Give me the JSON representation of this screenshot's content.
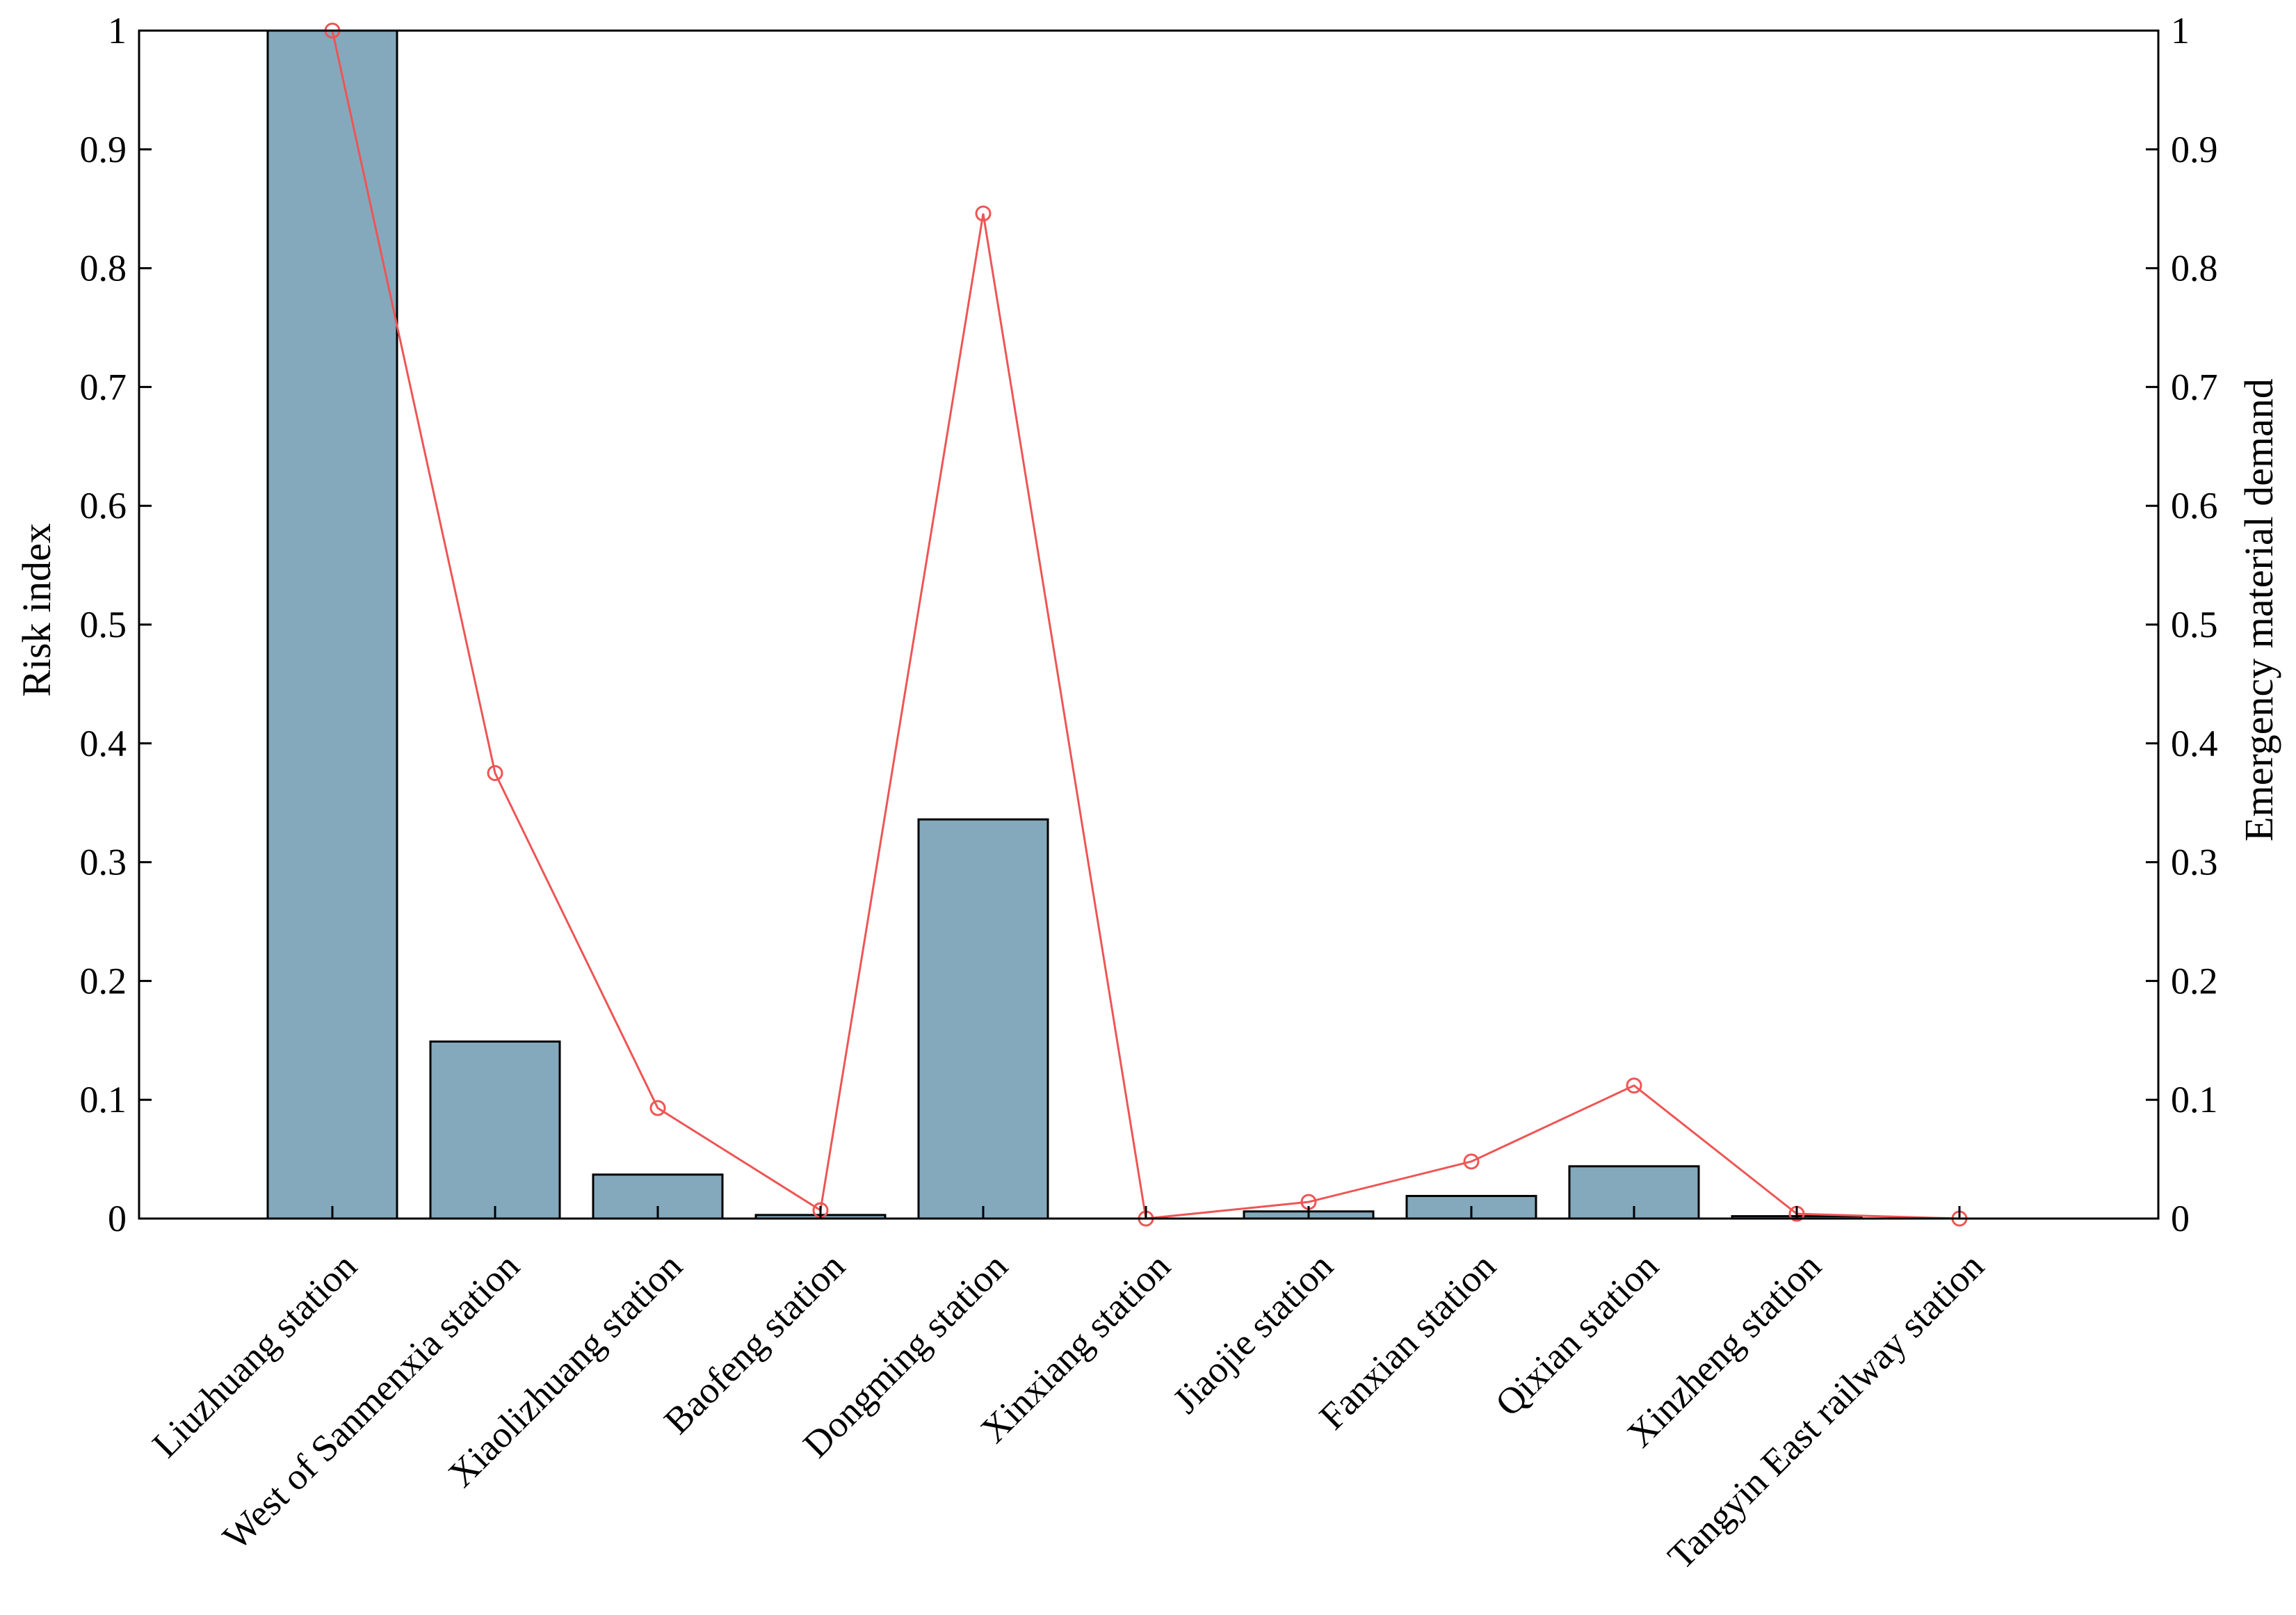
{
  "chart_data": {
    "type": "bar",
    "categories": [
      "Liuzhuang station",
      "West of Sanmenxia station",
      "Xiaolizhuang station",
      "Baofeng station",
      "Dongming station",
      "Xinxiang station",
      "Jiaojie station",
      "Fanxian station",
      "Qixian station",
      "Xinzheng station",
      "Tangyin East railway station"
    ],
    "series": [
      {
        "name": "Risk index",
        "type": "bar",
        "axis": "left",
        "values": [
          1.0,
          0.149,
          0.037,
          0.003,
          0.336,
          0.0,
          0.006,
          0.019,
          0.044,
          0.002,
          0.0
        ]
      },
      {
        "name": "Emergency material demand",
        "type": "line",
        "axis": "right",
        "marker": "circle",
        "values": [
          1.0,
          0.375,
          0.093,
          0.007,
          0.846,
          0.0,
          0.014,
          0.048,
          0.112,
          0.004,
          0.0
        ]
      }
    ],
    "ylabel": "Risk  index",
    "y2label": "Emergency  material  demand",
    "ylim": [
      0,
      1
    ],
    "y2lim": [
      0,
      1
    ],
    "yticks": [
      "0",
      "0.1",
      "0.2",
      "0.3",
      "0.4",
      "0.5",
      "0.6",
      "0.7",
      "0.8",
      "0.9",
      "1"
    ],
    "grid": false,
    "legend": "none",
    "colors": {
      "bar_fill": "#84a9bc",
      "bar_edge": "#000000",
      "line": "#ee5555",
      "axis": "#000000"
    }
  }
}
